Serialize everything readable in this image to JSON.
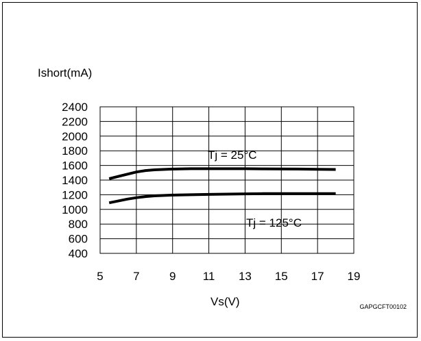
{
  "chart_data": {
    "type": "line",
    "ylabel": "Ishort(mA)",
    "xlabel": "Vs(V)",
    "xlim": [
      5,
      19
    ],
    "ylim": [
      400,
      2400
    ],
    "x_ticks": [
      5,
      7,
      9,
      11,
      13,
      15,
      17,
      19
    ],
    "y_ticks": [
      400,
      600,
      800,
      1000,
      1200,
      1400,
      1600,
      1800,
      2000,
      2200,
      2400
    ],
    "x_grid_lines": [
      5,
      7,
      9,
      11,
      13,
      15,
      17,
      19
    ],
    "grid": true,
    "annotations": [
      {
        "text": "Tj = 25°C",
        "x": 11.9,
        "y": 1670
      },
      {
        "text": "Tj = 125°C",
        "x": 13.4,
        "y": 1000
      }
    ],
    "series": [
      {
        "x": [
          5.5,
          6.5,
          7.0,
          7.5,
          8.0,
          9.0,
          10.0,
          11.0,
          12.0,
          13.0,
          14.0,
          15.0,
          16.0,
          17.0,
          18.0
        ],
        "values": [
          1420,
          1480,
          1510,
          1530,
          1540,
          1550,
          1555,
          1555,
          1555,
          1555,
          1553,
          1552,
          1550,
          1548,
          1545
        ]
      },
      {
        "x": [
          5.5,
          6.5,
          7.0,
          7.5,
          8.0,
          9.0,
          10.0,
          11.0,
          12.0,
          13.0,
          14.0,
          15.0,
          16.0,
          17.0,
          18.0
        ],
        "values": [
          1090,
          1140,
          1160,
          1175,
          1185,
          1195,
          1200,
          1205,
          1208,
          1212,
          1215,
          1215,
          1215,
          1215,
          1215
        ]
      }
    ],
    "footnote": "GAPGCFT00102"
  }
}
